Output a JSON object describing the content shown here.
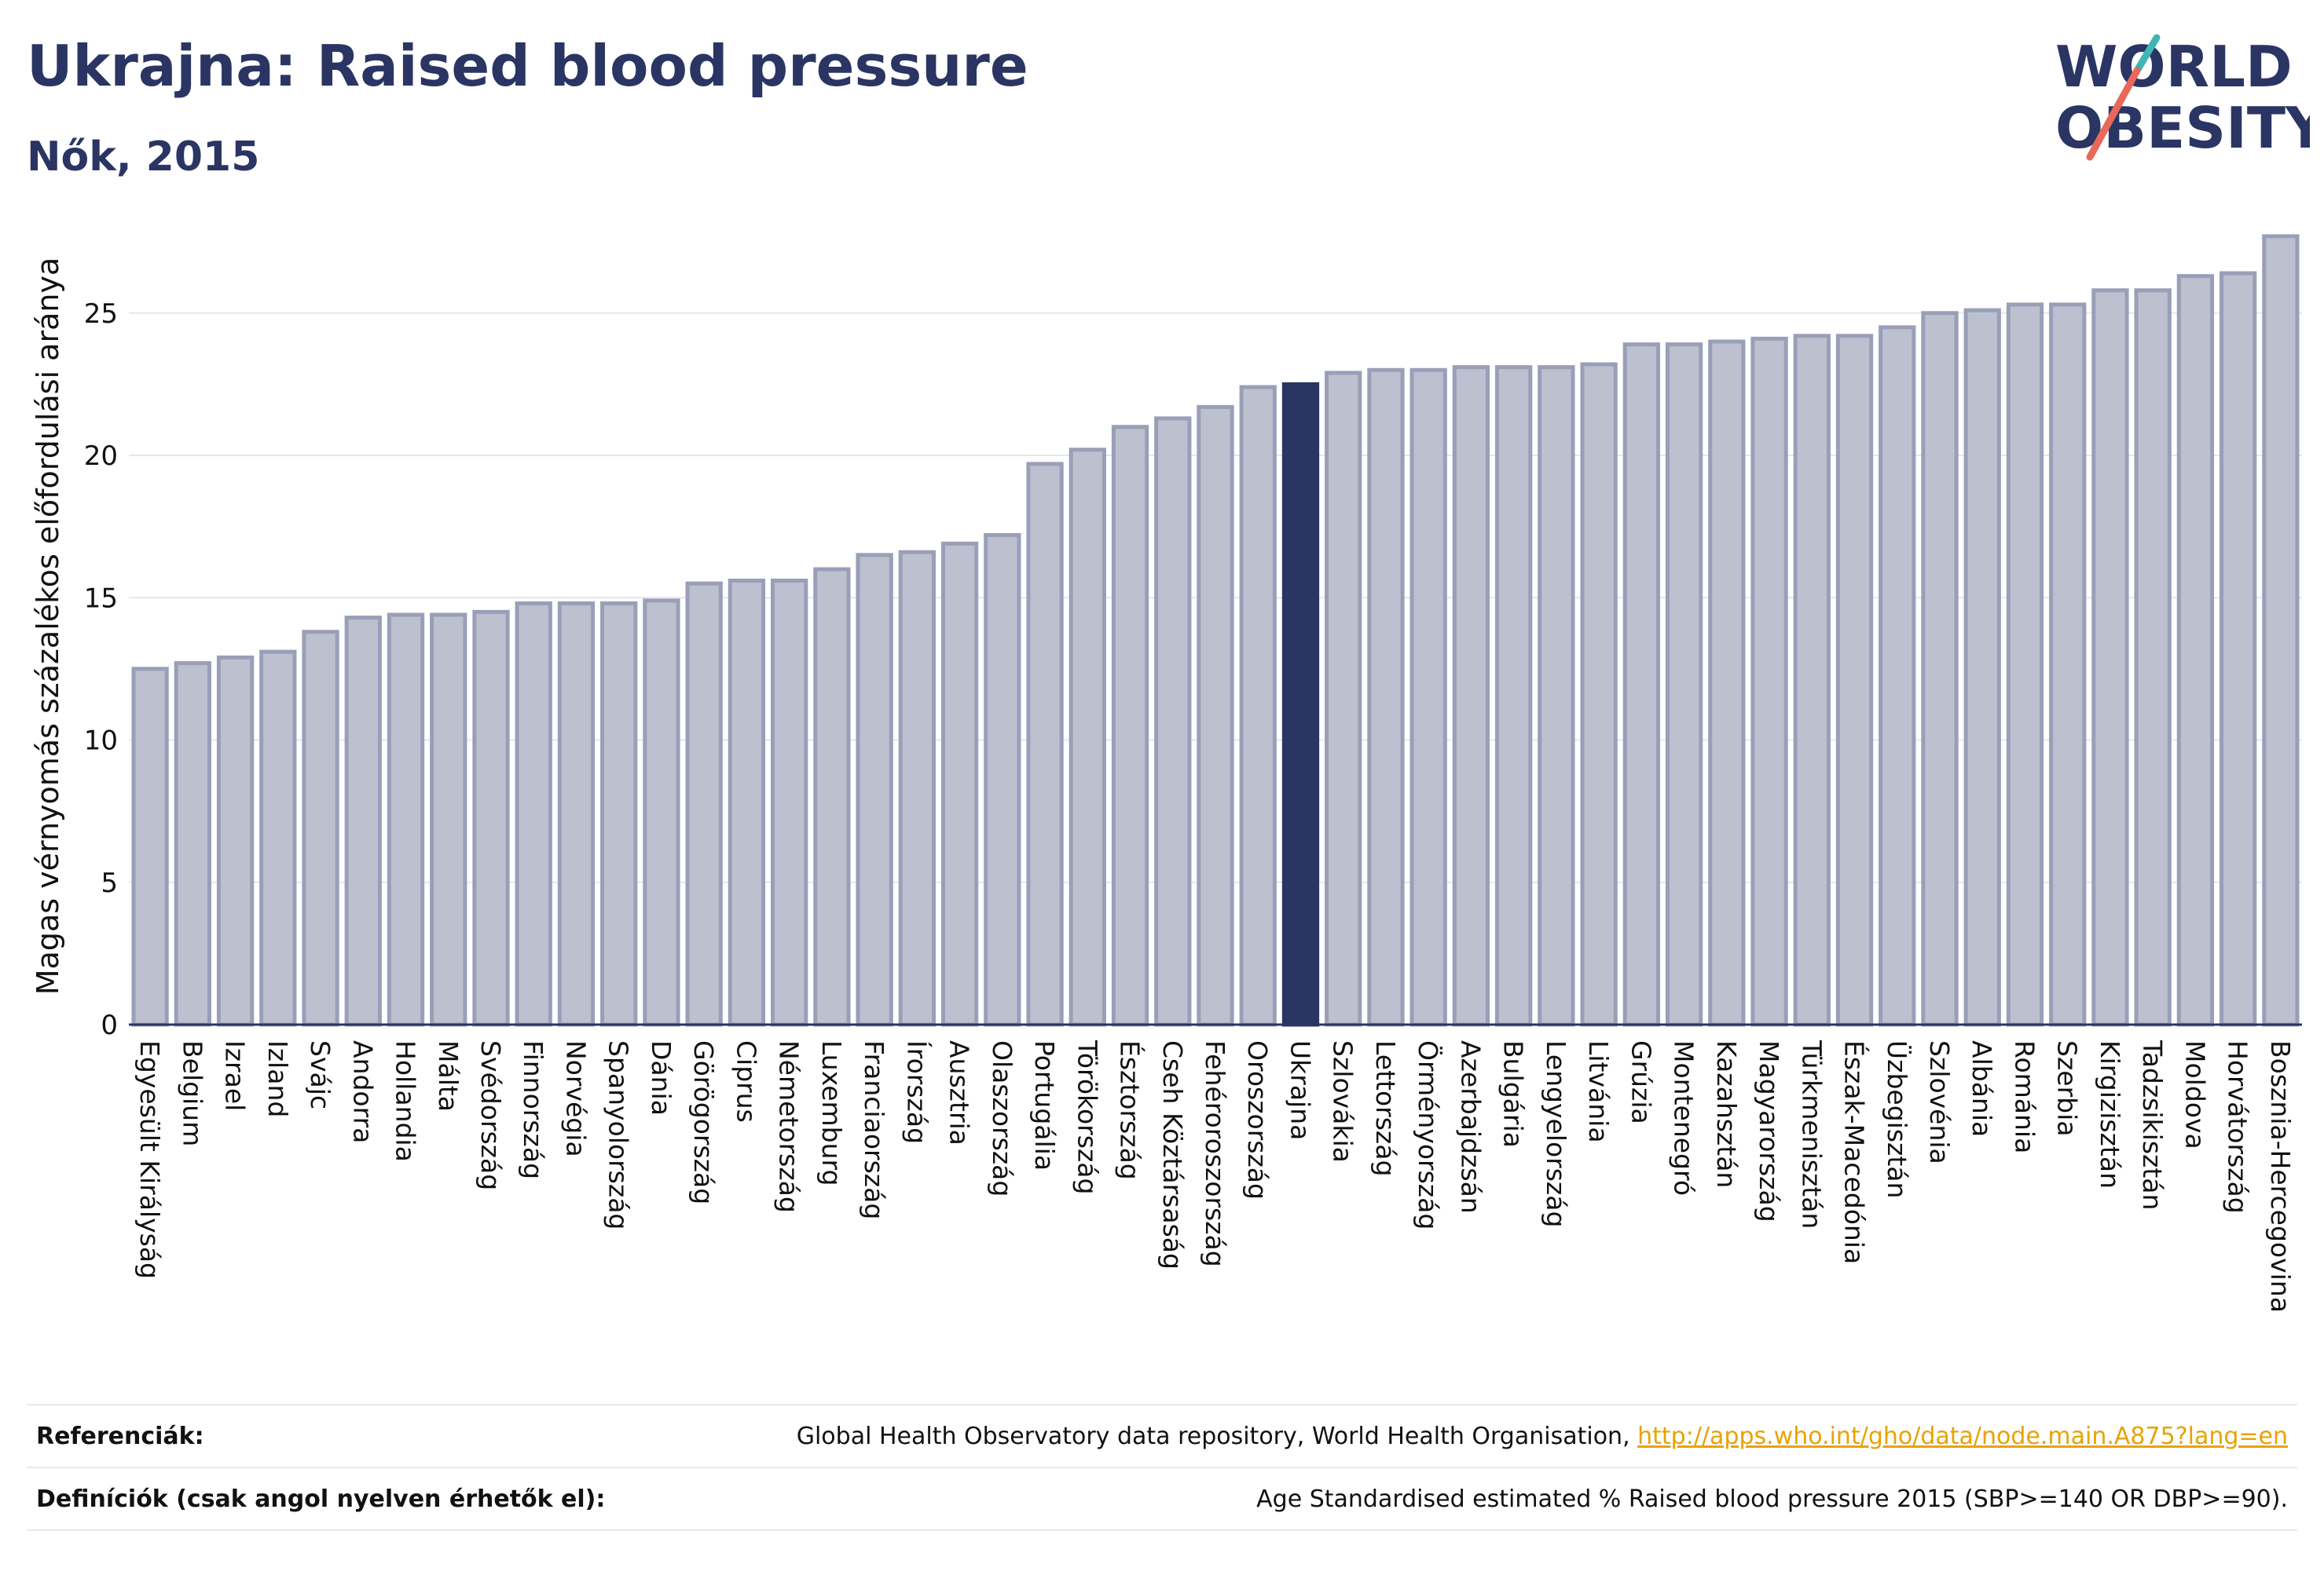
{
  "header": {
    "title": "Ukrajna: Raised blood pressure",
    "subtitle": "Nők, 2015"
  },
  "logo": {
    "line1": "WORLD",
    "line2": "OBESITY",
    "colors": {
      "navy": "#2a3563",
      "coral": "#e8685a",
      "teal": "#3fb6b2"
    }
  },
  "colors": {
    "bar": "#bcc0cf",
    "bar_stroke": "#9a9fb8",
    "highlight": "#2a3563",
    "grid": "#e6e6ee",
    "axis": "#2a3563"
  },
  "chart_data": {
    "type": "bar",
    "title": "Ukrajna: Raised blood pressure",
    "subtitle": "Nők, 2015",
    "ylabel": "Magas vérnyomás százalékos előfordulási aránya",
    "xlabel": "",
    "ylim": [
      0,
      28
    ],
    "yticks": [
      0,
      5,
      10,
      15,
      20,
      25
    ],
    "grid": true,
    "highlight": "Ukrajna",
    "categories": [
      "Egyesült Királyság",
      "Belgium",
      "Izrael",
      "Izland",
      "Svájc",
      "Andorra",
      "Hollandia",
      "Málta",
      "Svédország",
      "Finnország",
      "Norvégia",
      "Spanyolország",
      "Dánia",
      "Görögország",
      "Ciprus",
      "Németország",
      "Luxemburg",
      "Franciaország",
      "Írország",
      "Ausztria",
      "Olaszország",
      "Portugália",
      "Törökország",
      "Észtország",
      "Cseh Köztársaság",
      "Fehéroroszország",
      "Oroszország",
      "Ukrajna",
      "Szlovákia",
      "Lettország",
      "Örményország",
      "Azerbajdzsán",
      "Bulgária",
      "Lengyelország",
      "Litvánia",
      "Grúzia",
      "Montenegró",
      "Kazahsztán",
      "Magyarország",
      "Türkmenisztán",
      "Észak-Macedónia",
      "Üzbegisztán",
      "Szlovénia",
      "Albánia",
      "Románia",
      "Szerbia",
      "Kirgizisztán",
      "Tadzsikisztán",
      "Moldova",
      "Horvátország",
      "Bosznia-Hercegovina"
    ],
    "values": [
      12.5,
      12.7,
      12.9,
      13.1,
      13.8,
      14.3,
      14.4,
      14.4,
      14.5,
      14.8,
      14.8,
      14.8,
      14.9,
      15.5,
      15.6,
      15.6,
      16.0,
      16.5,
      16.6,
      16.9,
      17.2,
      19.7,
      20.2,
      21.0,
      21.3,
      21.7,
      22.4,
      22.5,
      22.9,
      23.0,
      23.0,
      23.1,
      23.1,
      23.1,
      23.2,
      23.9,
      23.9,
      24.0,
      24.1,
      24.2,
      24.2,
      24.5,
      25.0,
      25.1,
      25.3,
      25.3,
      25.8,
      25.8,
      26.3,
      26.4,
      27.7
    ]
  },
  "footer": {
    "references_label": "Referenciák:",
    "references_text": "Global Health Observatory data repository, World Health Organisation, ",
    "references_link": "http://apps.who.int/gho/data/node.main.A875?lang=en",
    "definitions_label": "Definíciók (csak angol nyelven érhetők el):",
    "definitions_text": "Age Standardised estimated % Raised blood pressure 2015 (SBP>=140 OR DBP>=90)."
  }
}
